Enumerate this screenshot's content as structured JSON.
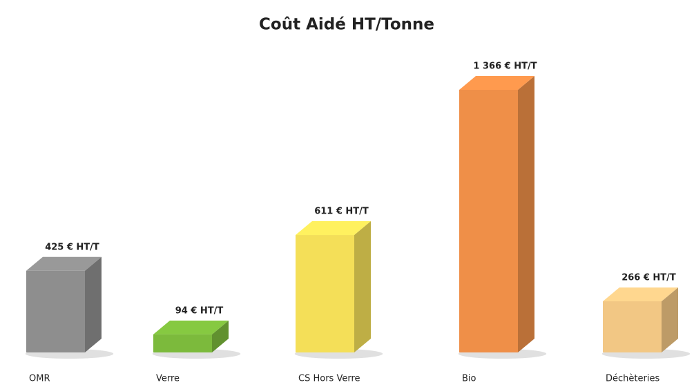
{
  "chart_data": {
    "type": "bar3d",
    "title": "Coût Aidé HT/Tonne",
    "categories": [
      "OMR",
      "Verre",
      "CS Hors Verre",
      "Bio",
      "Déchèteries"
    ],
    "values": [
      425,
      94,
      611,
      1366,
      266
    ],
    "value_labels": [
      "425 € HT/T",
      "94 € HT/T",
      "611 € HT/T",
      "1 366 € HT/T",
      "266 € HT/T"
    ],
    "colors": [
      "#8e8e8e",
      "#7cba3c",
      "#f4df58",
      "#ef8f48",
      "#f2c784"
    ]
  }
}
